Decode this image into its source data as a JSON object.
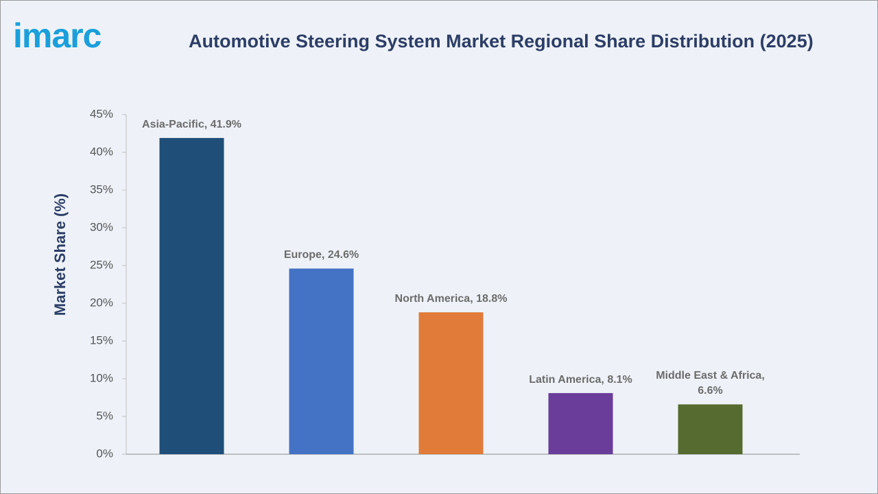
{
  "logo": "imarc",
  "chart_data": {
    "type": "bar",
    "title": "Automotive Steering System Market Regional Share Distribution (2025)",
    "y_label": "Market Share (%)",
    "categories": [
      "Asia-Pacific",
      "Europe",
      "North America",
      "Latin America",
      "Middle East & Africa"
    ],
    "values": [
      41.9,
      24.6,
      18.8,
      8.1,
      6.6
    ],
    "value_labels": [
      "Asia-Pacific, 41.9%",
      "Europe, 24.6%",
      "North America, 18.8%",
      "Latin America, 8.1%",
      "Middle East & Africa, 6.6%"
    ],
    "colors": [
      "#1f4e79",
      "#4472c4",
      "#e07b39",
      "#6a3d9a",
      "#556b2f"
    ],
    "ylim": [
      0,
      45
    ],
    "yticks": [
      {
        "value": 0,
        "label": "0%"
      },
      {
        "value": 5,
        "label": "5%"
      },
      {
        "value": 10,
        "label": "10%"
      },
      {
        "value": 15,
        "label": "15%"
      },
      {
        "value": 20,
        "label": "20%"
      },
      {
        "value": 25,
        "label": "25%"
      },
      {
        "value": 30,
        "label": "30%"
      },
      {
        "value": 35,
        "label": "35%"
      },
      {
        "value": 40,
        "label": "40%"
      },
      {
        "value": 45,
        "label": "45%"
      }
    ],
    "grid": false
  }
}
